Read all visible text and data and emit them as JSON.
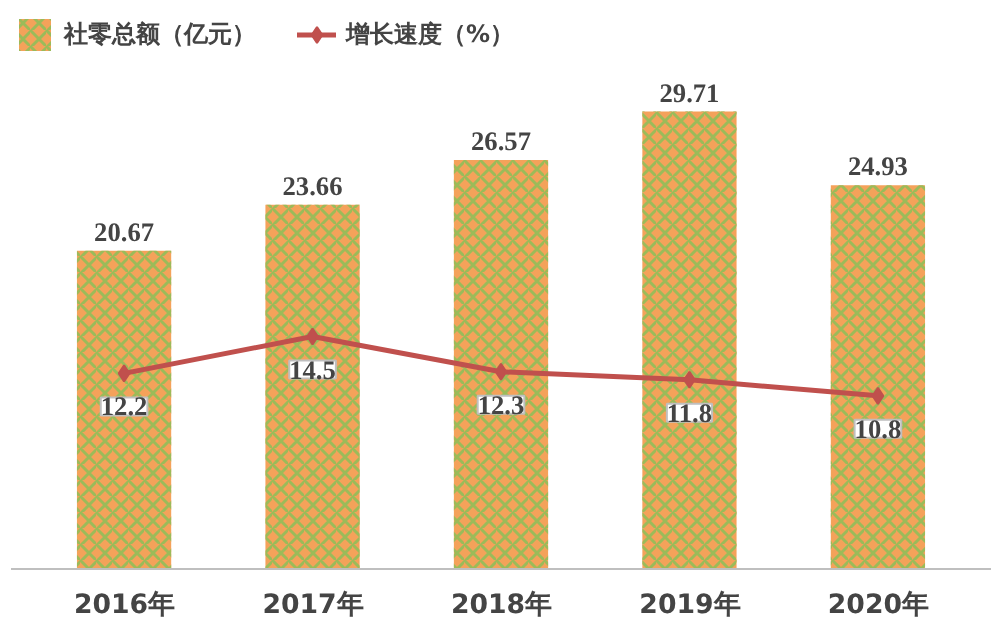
{
  "chart_data": {
    "type": "bar",
    "categories": [
      "2016年",
      "2017年",
      "2018年",
      "2019年",
      "2020年"
    ],
    "series": [
      {
        "name": "社零总额（亿元）",
        "color": "#f4a25a",
        "values": [
          20.67,
          23.66,
          26.57,
          29.71,
          24.93
        ]
      },
      {
        "name": "增长速度（%）",
        "type": "line",
        "axis": "y2",
        "color": "#c0504d",
        "values": [
          12.2,
          14.5,
          12.3,
          11.8,
          10.8
        ]
      }
    ],
    "tick_labels": "x",
    "data_labels": true,
    "legend": "top left",
    "marker": "diamond",
    "line_style": "solid",
    "grid": false
  }
}
